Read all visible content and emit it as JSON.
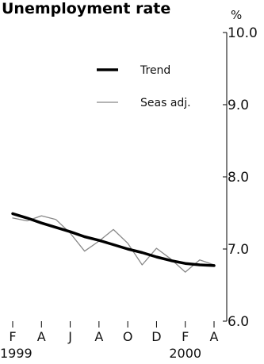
{
  "chart_data": {
    "type": "line",
    "title": "Unemployment rate",
    "ylabel": "%",
    "xlabel": "",
    "ylim": [
      6.0,
      10.0
    ],
    "y_ticks": [
      "6.0",
      "7.0",
      "8.0",
      "9.0",
      "10.0"
    ],
    "y_axis_side": "right",
    "grid": false,
    "legend_position": "top-right",
    "x": [
      "Feb-1999",
      "Mar-1999",
      "Apr-1999",
      "May-1999",
      "Jun-1999",
      "Jul-1999",
      "Aug-1999",
      "Sep-1999",
      "Oct-1999",
      "Nov-1999",
      "Dec-1999",
      "Jan-2000",
      "Feb-2000",
      "Mar-2000",
      "Apr-2000"
    ],
    "x_ticks": [
      {
        "label": "F",
        "year": "1999",
        "index": 0
      },
      {
        "label": "A",
        "index": 2
      },
      {
        "label": "J",
        "index": 4
      },
      {
        "label": "A",
        "index": 6
      },
      {
        "label": "O",
        "index": 8
      },
      {
        "label": "D",
        "index": 10
      },
      {
        "label": "F",
        "year": "2000",
        "index": 12
      },
      {
        "label": "A",
        "index": 14
      }
    ],
    "series": [
      {
        "name": "Trend",
        "color": "#000000",
        "style": "thick",
        "values": [
          7.49,
          7.43,
          7.36,
          7.3,
          7.24,
          7.17,
          7.12,
          7.06,
          7.0,
          6.95,
          6.89,
          6.84,
          6.8,
          6.78,
          6.77
        ]
      },
      {
        "name": "Seas adj.",
        "color": "#888888",
        "style": "thin",
        "values": [
          7.43,
          7.39,
          7.46,
          7.41,
          7.22,
          6.97,
          7.11,
          7.27,
          7.08,
          6.78,
          7.01,
          6.86,
          6.68,
          6.85,
          6.78
        ]
      }
    ]
  }
}
